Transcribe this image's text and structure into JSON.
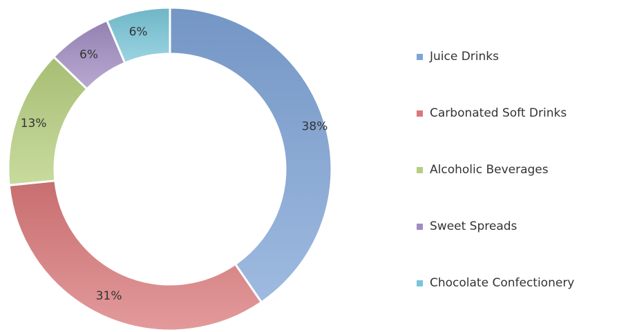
{
  "chart_data": {
    "type": "pie",
    "variant": "donut",
    "title": "",
    "categories": [
      "Juice Drinks",
      "Carbonated Soft Drinks",
      "Alcoholic Beverages",
      "Sweet Spreads",
      "Chocolate Confectionery"
    ],
    "values": [
      38,
      31,
      13,
      6,
      6
    ],
    "value_labels": [
      "38%",
      "31%",
      "13%",
      "6%",
      "6%"
    ],
    "unit": "%",
    "colors": [
      "#7ea3d6",
      "#d9787a",
      "#b6cf7e",
      "#a08cc2",
      "#79c6d8"
    ],
    "legend": {
      "position": "right"
    },
    "start_angle": "top",
    "direction": "clockwise"
  }
}
